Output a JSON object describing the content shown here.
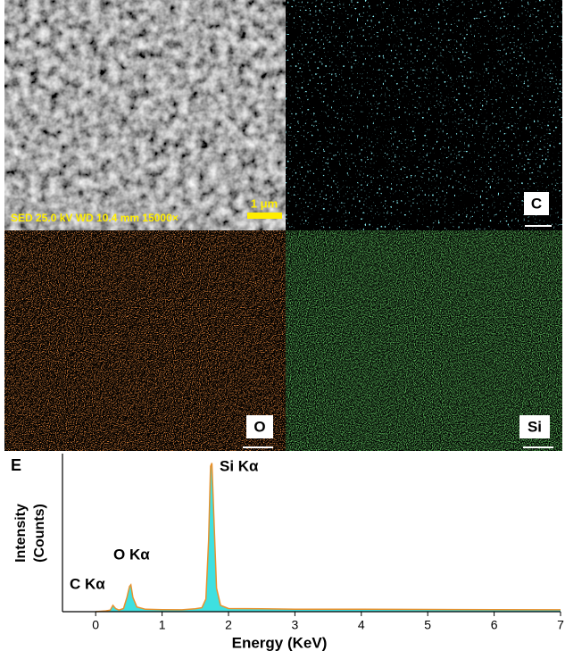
{
  "images": {
    "sem_info": "SED 25.0 kV  WD 10.4 mm  15000×",
    "scale": "1 μm",
    "maps": [
      "C",
      "O",
      "Si"
    ]
  },
  "chart_data": {
    "type": "line",
    "panel": "E",
    "xlabel": "Energy (KeV)",
    "ylabel": [
      "Intensity",
      "(Counts)"
    ],
    "annotations": [
      "C Kα",
      "O Kα",
      "Si Kα"
    ],
    "x": [
      0,
      0.15,
      0.22,
      0.26,
      0.3,
      0.35,
      0.42,
      0.47,
      0.51,
      0.53,
      0.56,
      0.62,
      0.75,
      1.0,
      1.3,
      1.5,
      1.6,
      1.66,
      1.7,
      1.73,
      1.75,
      1.78,
      1.82,
      1.88,
      2.0,
      2.5,
      3,
      4,
      5,
      6,
      7
    ],
    "series": [
      {
        "color": "#e8912c",
        "area_color": "#3ee0e0",
        "values": [
          0,
          0.5,
          1,
          4,
          2,
          1,
          2,
          9,
          16,
          17,
          9,
          3,
          1.5,
          1.3,
          1.2,
          1.8,
          2.5,
          8,
          45,
          92,
          94,
          60,
          15,
          4,
          2,
          1.8,
          1.6,
          1.5,
          1.4,
          1.3,
          1.2
        ]
      }
    ],
    "xlim": [
      -0.5,
      7
    ],
    "xticks": [
      0,
      1,
      2,
      3,
      4,
      5,
      6,
      7
    ],
    "ylim": [
      0,
      100
    ]
  }
}
